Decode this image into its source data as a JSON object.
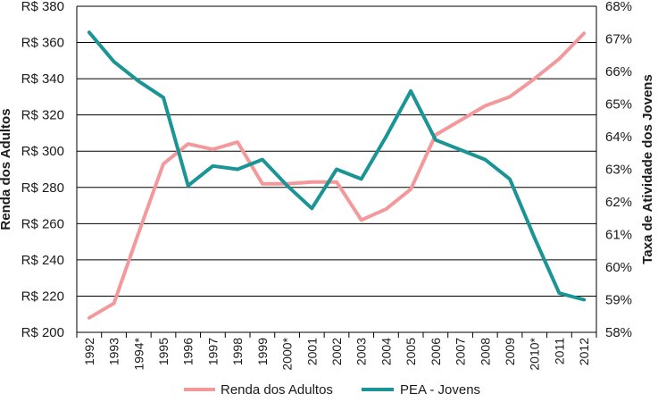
{
  "chart_data": {
    "type": "line",
    "categories": [
      "1992",
      "1993",
      "1994*",
      "1995",
      "1996",
      "1997",
      "1998",
      "1999",
      "2000*",
      "2001",
      "2002",
      "2003",
      "2004",
      "2005",
      "2006",
      "2007",
      "2008",
      "2009",
      "2010*",
      "2011",
      "2012"
    ],
    "series": [
      {
        "name": "Renda dos Adultos",
        "axis": "left",
        "color": "#f4999b",
        "values": [
          208,
          216,
          255,
          293,
          304,
          301,
          305,
          282,
          282,
          283,
          283,
          262,
          268,
          279,
          309,
          317,
          325,
          330,
          340,
          351,
          365
        ]
      },
      {
        "name": "PEA - Jovens",
        "axis": "right",
        "color": "#1a9494",
        "values": [
          67.2,
          66.3,
          65.7,
          65.2,
          62.5,
          63.1,
          63.0,
          63.3,
          62.5,
          61.8,
          63.0,
          62.7,
          64.0,
          65.4,
          63.9,
          63.6,
          63.3,
          62.7,
          60.9,
          59.2,
          59.0
        ]
      }
    ],
    "y_left": {
      "label": "Renda dos Adultos",
      "range": [
        200,
        380
      ],
      "ticks": [
        "R$ 200",
        "R$ 220",
        "R$ 240",
        "R$ 260",
        "R$ 280",
        "R$ 300",
        "R$ 320",
        "R$ 340",
        "R$ 360",
        "R$ 380"
      ]
    },
    "y_right": {
      "label": "Taxa de Atividade dos Jovens",
      "range": [
        58,
        68
      ],
      "ticks": [
        "58%",
        "59%",
        "60%",
        "61%",
        "62%",
        "63%",
        "64%",
        "65%",
        "66%",
        "67%",
        "68%"
      ]
    },
    "grid": "horizontal",
    "legend": "bottom"
  }
}
